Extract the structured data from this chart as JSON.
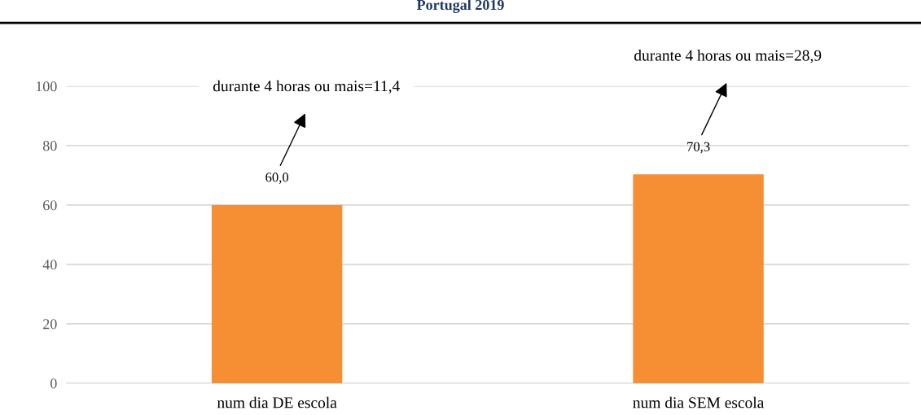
{
  "chart_data": {
    "type": "bar",
    "title": "Portugal 2019",
    "categories": [
      "num dia DE escola",
      "num dia SEM escola"
    ],
    "values": [
      60.0,
      70.3
    ],
    "color": "#f68e33",
    "value_labels": [
      "60,0",
      "70,3"
    ],
    "ylim": [
      0,
      100
    ],
    "yticks": [
      0,
      20,
      40,
      60,
      80,
      100
    ],
    "grid": "y",
    "annotations": [
      "durante 4 horas ou mais=11,4",
      "durante 4 horas ou mais=28,9"
    ]
  }
}
